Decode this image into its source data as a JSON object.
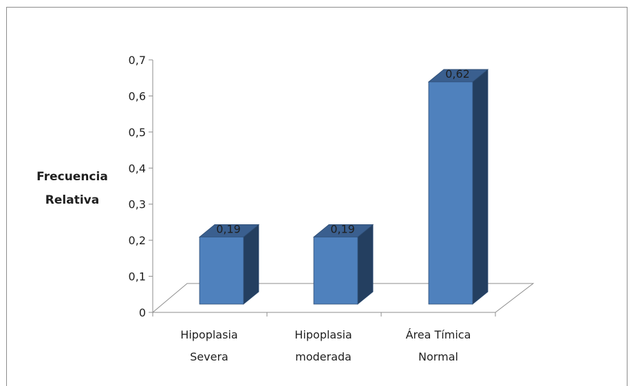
{
  "chart_data": {
    "type": "bar",
    "title": "",
    "ylabel": [
      "Frecuencia",
      "Relativa"
    ],
    "xlabel": "",
    "categories": [
      [
        "Hipoplasia",
        "Severa"
      ],
      [
        "Hipoplasia",
        "moderada"
      ],
      [
        "Área Tímica",
        "Normal"
      ]
    ],
    "values": [
      0.19,
      0.19,
      0.62
    ],
    "data_labels": [
      "0,19",
      "0,19",
      "0,62"
    ],
    "ylim": [
      0,
      0.7
    ],
    "yticks": [
      0,
      0.1,
      0.2,
      0.3,
      0.4,
      0.5,
      0.6,
      0.7
    ],
    "ytick_labels": [
      "0",
      "0,1",
      "0,2",
      "0,3",
      "0,4",
      "0,5",
      "0,6",
      "0,7"
    ],
    "grid": false,
    "legend": "none",
    "style": "3d-column",
    "colors": {
      "front": "#4f81bd",
      "side": "#243f60",
      "top": "#3a5f8f",
      "edge": "#2e4d73"
    }
  }
}
